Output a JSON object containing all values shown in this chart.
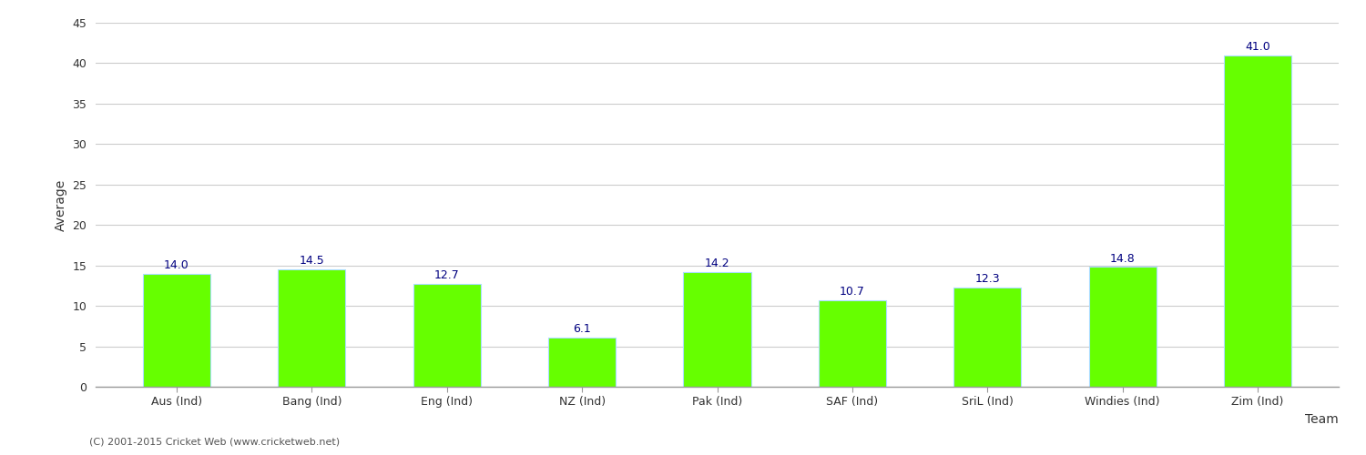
{
  "categories": [
    "Aus (Ind)",
    "Bang (Ind)",
    "Eng (Ind)",
    "NZ (Ind)",
    "Pak (Ind)",
    "SAF (Ind)",
    "SriL (Ind)",
    "Windies (Ind)",
    "Zim (Ind)"
  ],
  "values": [
    14.0,
    14.5,
    12.7,
    6.1,
    14.2,
    10.7,
    12.3,
    14.8,
    41.0
  ],
  "bar_color": "#66ff00",
  "bar_edge_color": "#aaddff",
  "label_color": "#000080",
  "xlabel": "Team",
  "ylabel": "Average",
  "ylim": [
    0,
    45
  ],
  "yticks": [
    0,
    5,
    10,
    15,
    20,
    25,
    30,
    35,
    40,
    45
  ],
  "grid_color": "#cccccc",
  "background_color": "#ffffff",
  "footer_text": "(C) 2001-2015 Cricket Web (www.cricketweb.net)",
  "label_fontsize": 9,
  "axis_fontsize": 10,
  "tick_fontsize": 9
}
